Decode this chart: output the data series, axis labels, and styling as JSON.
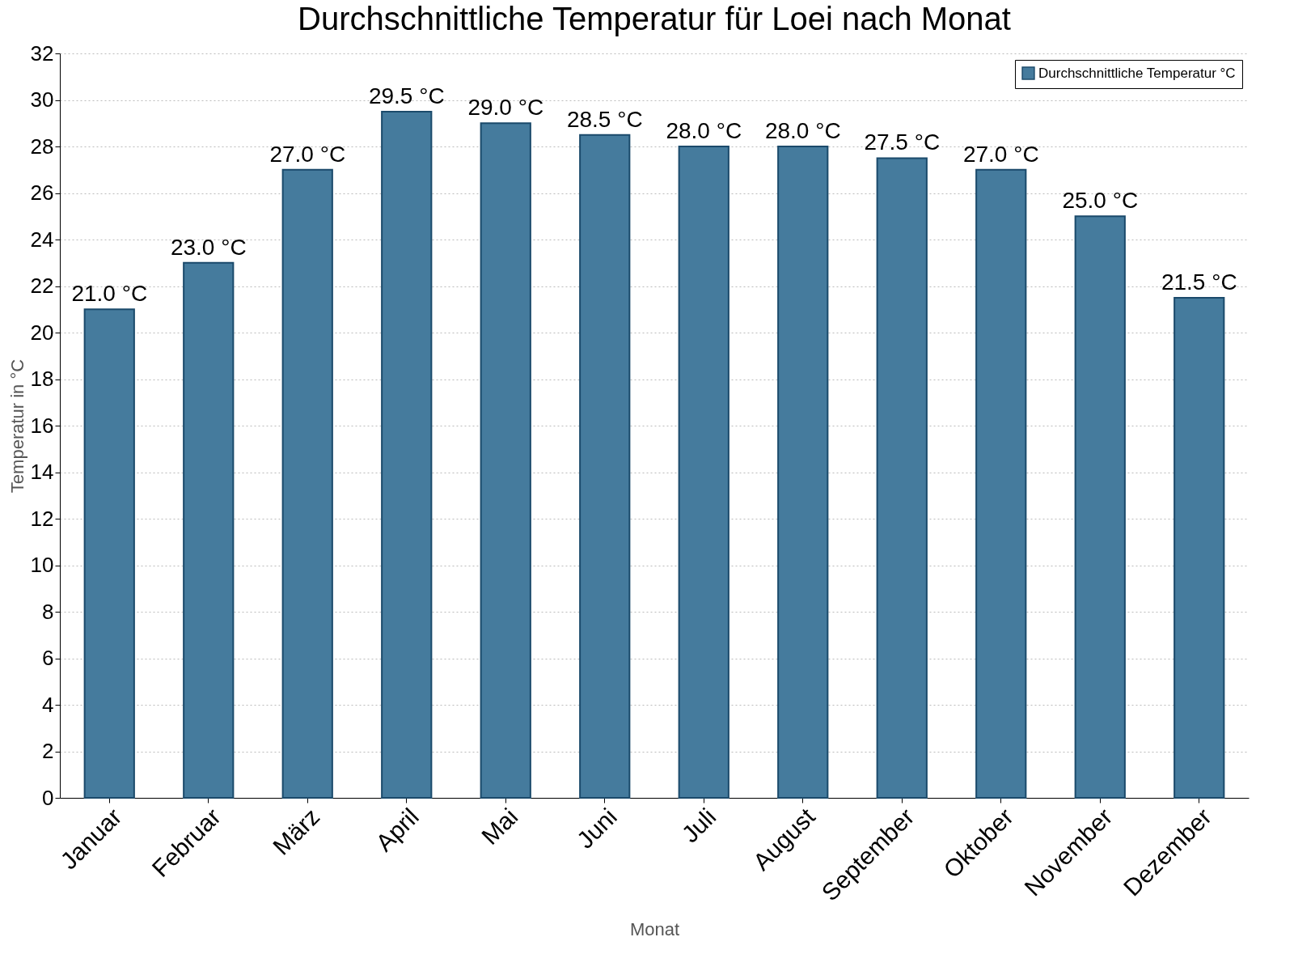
{
  "chart_data": {
    "type": "bar",
    "title": "Durchschnittliche Temperatur für Loei nach Monat",
    "xlabel": "Monat",
    "ylabel": "Temperatur in °C",
    "categories": [
      "Januar",
      "Februar",
      "März",
      "April",
      "Mai",
      "Juni",
      "Juli",
      "August",
      "September",
      "Oktober",
      "November",
      "Dezember"
    ],
    "series": [
      {
        "name": "Durchschnittliche Temperatur °C",
        "color": "#457b9d",
        "values": [
          21.0,
          23.0,
          27.0,
          29.5,
          29.0,
          28.5,
          28.0,
          28.0,
          27.5,
          27.0,
          25.0,
          21.5
        ],
        "value_labels": [
          "21.0 °C",
          "23.0 °C",
          "27.0 °C",
          "29.5 °C",
          "29.0 °C",
          "28.5 °C",
          "28.0 °C",
          "28.0 °C",
          "27.5 °C",
          "27.0 °C",
          "25.0 °C",
          "21.5 °C"
        ]
      }
    ],
    "ylim": [
      0,
      32
    ],
    "yticks": [
      0,
      2,
      4,
      6,
      8,
      10,
      12,
      14,
      16,
      18,
      20,
      22,
      24,
      26,
      28,
      30,
      32
    ],
    "grid": "y",
    "legend": "top right"
  }
}
